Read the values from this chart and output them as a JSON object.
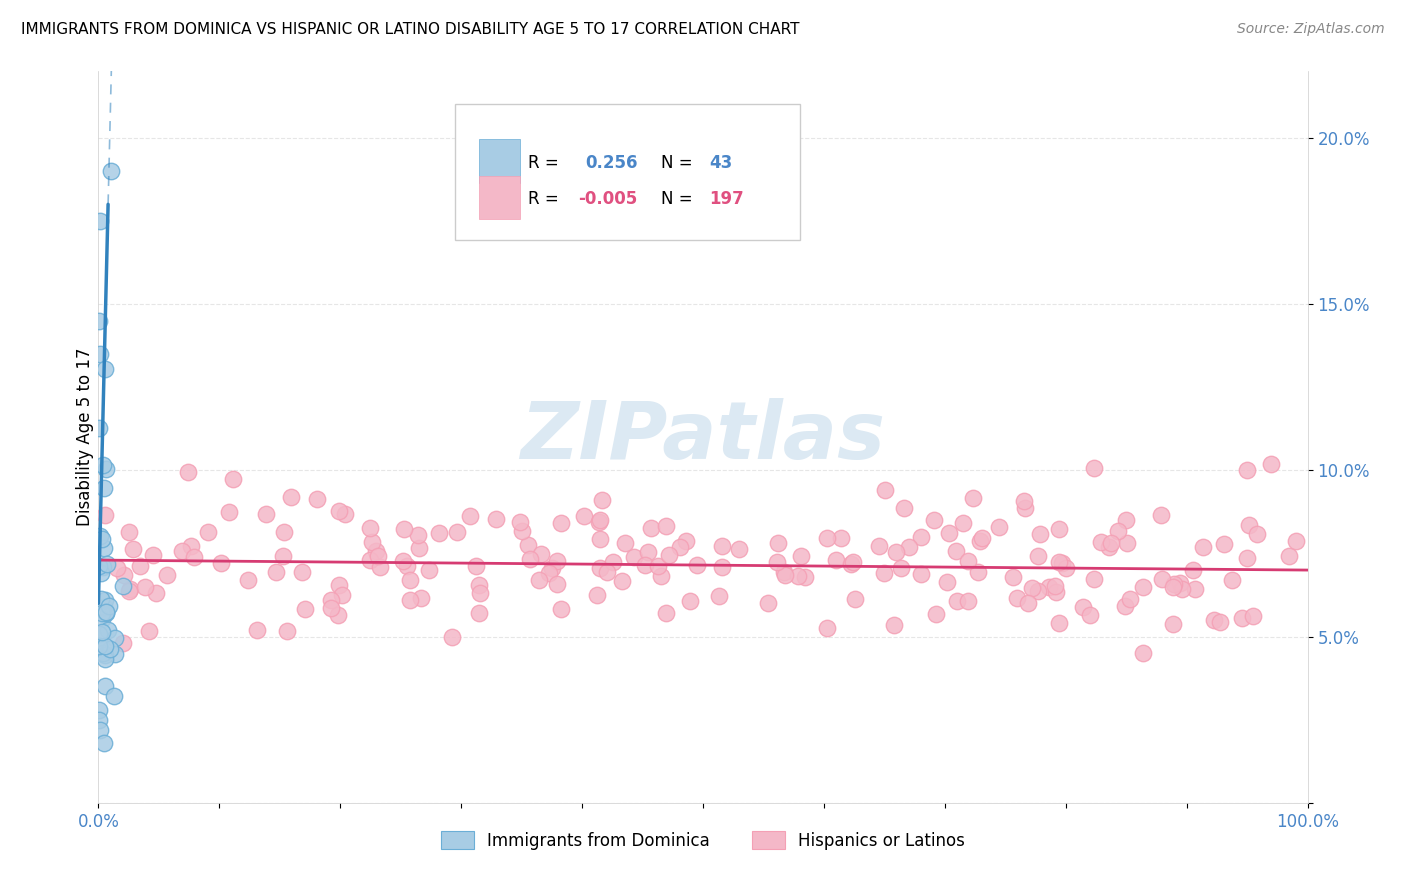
{
  "title": "IMMIGRANTS FROM DOMINICA VS HISPANIC OR LATINO DISABILITY AGE 5 TO 17 CORRELATION CHART",
  "source": "Source: ZipAtlas.com",
  "ylabel": "Disability Age 5 to 17",
  "x_min": 0.0,
  "x_max": 1.0,
  "y_min": 0.0,
  "y_max": 0.22,
  "blue_R": 0.256,
  "blue_N": 43,
  "pink_R": -0.005,
  "pink_N": 197,
  "blue_color": "#a8cce4",
  "blue_edge_color": "#6baed6",
  "pink_color": "#f4b8c8",
  "pink_edge_color": "#f4a0b5",
  "blue_line_color": "#3182bd",
  "pink_line_color": "#d63b72",
  "watermark_color": "#dce9f3",
  "legend_label_blue": "Immigrants from Dominica",
  "legend_label_pink": "Hispanics or Latinos",
  "tick_color": "#4a86c8",
  "grid_color": "#e0e0e0"
}
